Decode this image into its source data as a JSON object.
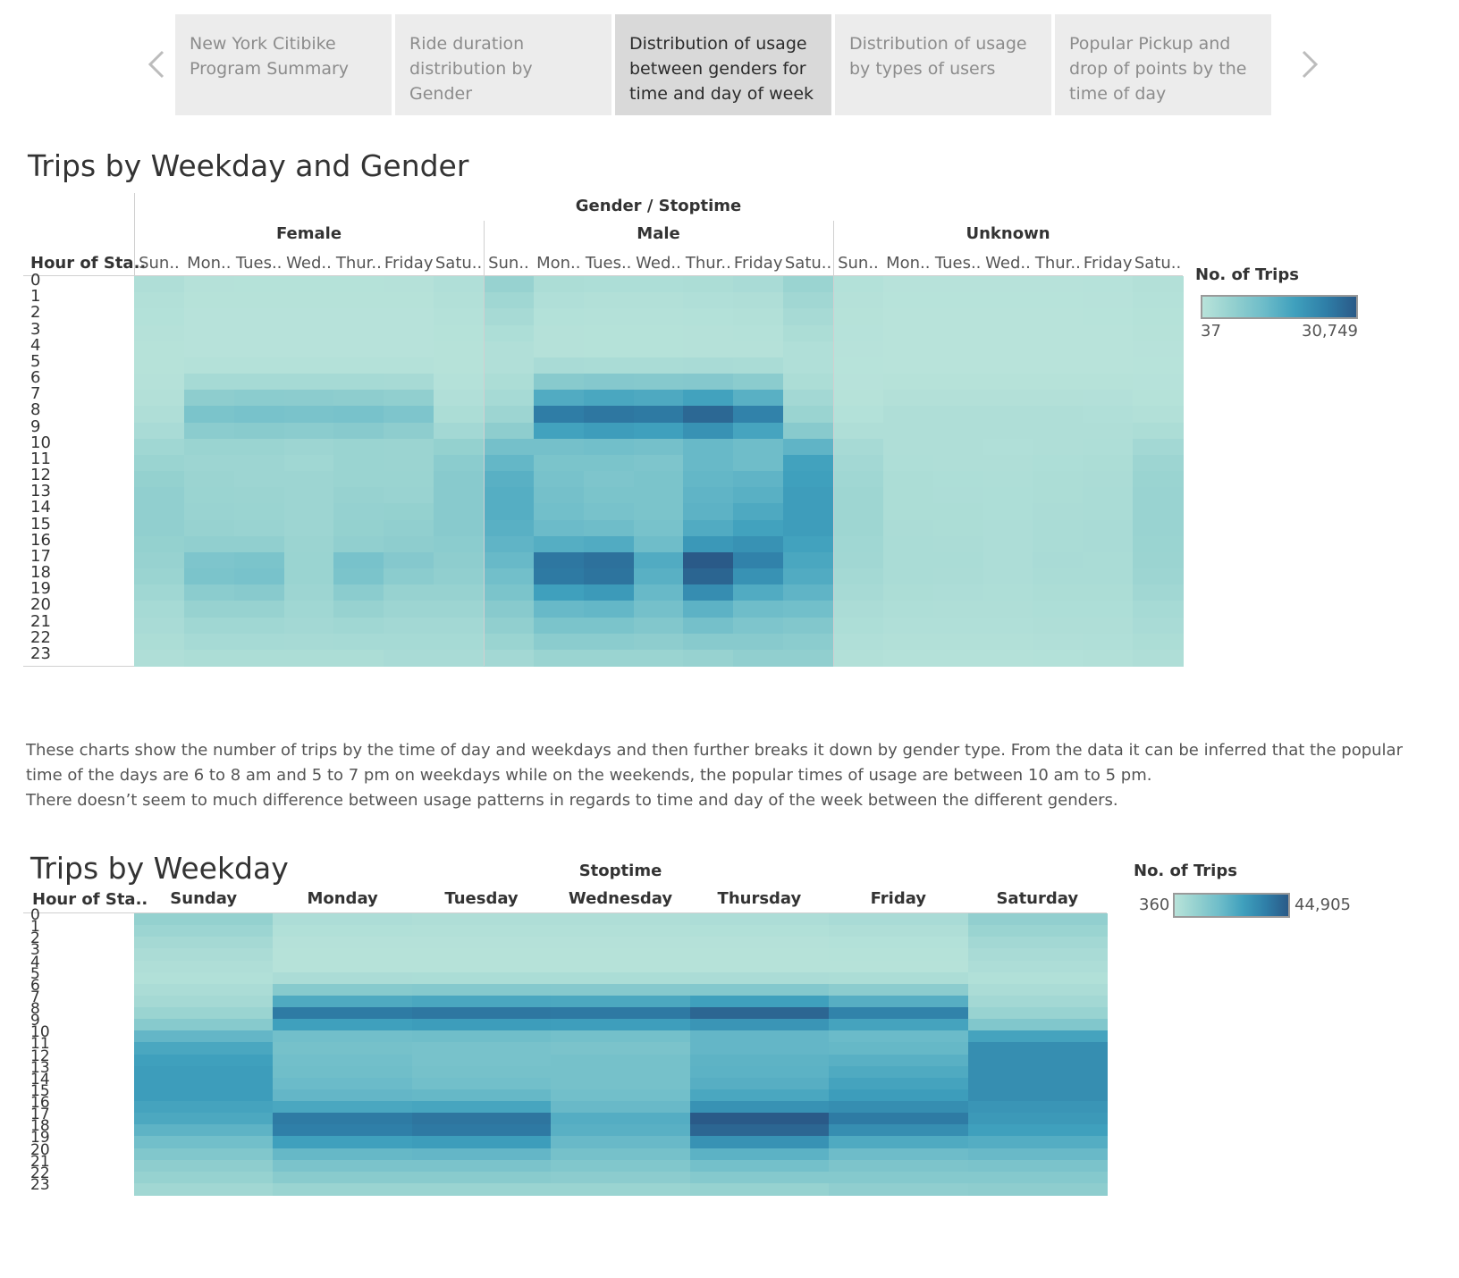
{
  "story_nav": {
    "tabs": [
      {
        "label_lines": [
          "New York Citibike",
          "Program Summary"
        ]
      },
      {
        "label_lines": [
          "Ride duration",
          "distribution by Gender"
        ]
      },
      {
        "label_lines": [
          "Distribution of usage",
          "between genders for",
          "time and day of week"
        ]
      },
      {
        "label_lines": [
          "Distribution of usage",
          "by types of users"
        ]
      },
      {
        "label_lines": [
          "Popular Pickup and",
          "drop of points by the",
          "time of day"
        ]
      }
    ],
    "active_index": 2
  },
  "chart1": {
    "title": "Trips by Weekday and Gender",
    "group_header": "Gender / Stoptime",
    "genders": [
      "Female",
      "Male",
      "Unknown"
    ],
    "day_labels": [
      "Sun..",
      "Mon..",
      "Tues..",
      "Wed..",
      "Thur..",
      "Friday",
      "Satu.."
    ],
    "row_header": "Hour of Sta..",
    "legend_title": "No. of Trips",
    "legend_min": "37",
    "legend_max": "30,749"
  },
  "description": {
    "lines": [
      "These charts show the number of trips by the time of day and weekdays and then further breaks it down by gender type. From the data it can be inferred that the popular",
      "time of the days are 6 to 8 am and 5 to 7 pm on weekdays while on the weekends, the popular times of usage are between 10 am to 5 pm.",
      "There doesn’t seem to much difference between usage patterns in regards to time and day of the week between the different genders."
    ]
  },
  "chart2": {
    "title": "Trips by Weekday",
    "group_header": "Stoptime",
    "days": [
      "Sunday",
      "Monday",
      "Tuesday",
      "Wednesday",
      "Thursday",
      "Friday",
      "Saturday"
    ],
    "row_header": "Hour of Sta..",
    "legend_title": "No. of Trips",
    "legend_min": "360",
    "legend_max": "44,905"
  },
  "colors": {
    "scale": [
      "#b8e3da",
      "#93d0cf",
      "#6dbcc9",
      "#3fa0bd",
      "#2f7fa8",
      "#2a5a88"
    ]
  },
  "chart_data": [
    {
      "type": "heatmap",
      "title": "Trips by Weekday and Gender",
      "xlabel": "Gender / Stoptime",
      "ylabel": "Hour of Sta..",
      "columns": [
        "Female",
        "Male",
        "Unknown"
      ],
      "x": [
        "Sun..",
        "Mon..",
        "Tues..",
        "Wed..",
        "Thur..",
        "Friday",
        "Satu.."
      ],
      "y": [
        "0",
        "1",
        "2",
        "3",
        "4",
        "5",
        "6",
        "7",
        "8",
        "9",
        "10",
        "11",
        "12",
        "13",
        "14",
        "15",
        "16",
        "17",
        "18",
        "19",
        "20",
        "21",
        "22",
        "23"
      ],
      "color_range": [
        37,
        30749
      ],
      "series": [
        {
          "name": "Female",
          "values": [
            [
              1500,
              600,
              500,
              500,
              500,
              600,
              1300
            ],
            [
              1100,
              400,
              350,
              350,
              350,
              400,
              1000
            ],
            [
              800,
              250,
              250,
              250,
              250,
              250,
              700
            ],
            [
              600,
              200,
              200,
              200,
              200,
              200,
              500
            ],
            [
              450,
              200,
              200,
              200,
              200,
              200,
              400
            ],
            [
              400,
              700,
              700,
              700,
              700,
              650,
              400
            ],
            [
              600,
              3000,
              3100,
              3000,
              3000,
              2800,
              700
            ],
            [
              900,
              7000,
              7500,
              7300,
              7000,
              6500,
              1200
            ],
            [
              1500,
              10000,
              10500,
              10200,
              10500,
              9500,
              2000
            ],
            [
              2500,
              7500,
              7800,
              7500,
              8000,
              7000,
              3500
            ],
            [
              4000,
              5000,
              5000,
              4500,
              5000,
              4800,
              6000
            ],
            [
              5000,
              4500,
              4500,
              4000,
              5000,
              4800,
              7500
            ],
            [
              6000,
              4800,
              4500,
              4500,
              5000,
              5000,
              8000
            ],
            [
              6500,
              5000,
              4800,
              4500,
              5500,
              5200,
              8000
            ],
            [
              6500,
              5200,
              5000,
              4500,
              5800,
              6000,
              8000
            ],
            [
              6500,
              5500,
              5200,
              4500,
              6000,
              6500,
              8000
            ],
            [
              6000,
              6500,
              6500,
              4800,
              6500,
              7000,
              7500
            ],
            [
              5500,
              9500,
              10000,
              5000,
              10500,
              8500,
              7000
            ],
            [
              5000,
              10000,
              10500,
              5000,
              10000,
              7500,
              6500
            ],
            [
              4000,
              7500,
              8000,
              4500,
              7500,
              5500,
              5500
            ],
            [
              3000,
              5500,
              5500,
              4000,
              5500,
              4500,
              4500
            ],
            [
              2500,
              4000,
              4000,
              3500,
              4000,
              3500,
              3500
            ],
            [
              2000,
              3000,
              3000,
              2800,
              3000,
              3000,
              3000
            ],
            [
              1500,
              2000,
              2000,
              2000,
              2000,
              2500,
              2500
            ]
          ]
        },
        {
          "name": "Male",
          "values": [
            [
              5500,
              2000,
              1800,
              1800,
              2000,
              2500,
              5000
            ],
            [
              4000,
              1300,
              1100,
              1100,
              1300,
              1600,
              3800
            ],
            [
              2800,
              800,
              700,
              700,
              800,
              1000,
              2800
            ],
            [
              1800,
              600,
              500,
              500,
              600,
              700,
              2000
            ],
            [
              1200,
              600,
              500,
              500,
              600,
              600,
              1400
            ],
            [
              1200,
              2500,
              2400,
              2400,
              2500,
              2300,
              1300
            ],
            [
              2000,
              8000,
              8500,
              8300,
              8500,
              7500,
              2000
            ],
            [
              3000,
              16000,
              17000,
              16500,
              18000,
              15000,
              3500
            ],
            [
              4500,
              25000,
              26000,
              25500,
              28500,
              24000,
              5000
            ],
            [
              7000,
              18000,
              19000,
              18500,
              21000,
              17500,
              8000
            ],
            [
              11000,
              11000,
              11500,
              11000,
              13000,
              12000,
              14000
            ],
            [
              13500,
              10000,
              10000,
              9500,
              13000,
              12000,
              18000
            ],
            [
              15000,
              10500,
              9500,
              10000,
              13500,
              14000,
              18500
            ],
            [
              15500,
              11000,
              10000,
              10000,
              14000,
              15000,
              19000
            ],
            [
              15500,
              11500,
              10500,
              10000,
              14500,
              16500,
              19000
            ],
            [
              15000,
              12500,
              12000,
              10500,
              16000,
              18000,
              19000
            ],
            [
              14000,
              15500,
              16000,
              12000,
              20000,
              21000,
              18000
            ],
            [
              13000,
              26000,
              27000,
              16000,
              30749,
              24000,
              17000
            ],
            [
              11500,
              25500,
              26500,
              15000,
              29000,
              21000,
              16000
            ],
            [
              10000,
              18500,
              19500,
              13000,
              22000,
              16000,
              14000
            ],
            [
              8000,
              13000,
              13500,
              11000,
              14500,
              12000,
              11500
            ],
            [
              6500,
              10000,
              10000,
              9000,
              11000,
              9500,
              9000
            ],
            [
              5000,
              7500,
              7500,
              7000,
              8000,
              8000,
              7500
            ],
            [
              3500,
              5000,
              5000,
              5000,
              5500,
              6500,
              6500
            ]
          ]
        },
        {
          "name": "Unknown",
          "values": [
            [
              800,
              200,
              200,
              200,
              200,
              300,
              900
            ],
            [
              600,
              150,
              150,
              150,
              150,
              200,
              700
            ],
            [
              450,
              100,
              100,
              100,
              100,
              150,
              500
            ],
            [
              300,
              80,
              80,
              80,
              80,
              100,
              350
            ],
            [
              200,
              60,
              60,
              60,
              60,
              80,
              250
            ],
            [
              150,
              100,
              100,
              100,
              100,
              100,
              150
            ],
            [
              250,
              400,
              400,
              400,
              400,
              400,
              300
            ],
            [
              450,
              900,
              900,
              900,
              900,
              850,
              500
            ],
            [
              800,
              1500,
              1500,
              1500,
              1500,
              1400,
              1000
            ],
            [
              1500,
              1500,
              1500,
              1500,
              1500,
              1500,
              2000
            ],
            [
              2800,
              1500,
              1500,
              1400,
              1600,
              1700,
              3500
            ],
            [
              3500,
              1700,
              1600,
              1500,
              1800,
              2000,
              4500
            ],
            [
              4000,
              2000,
              1800,
              1700,
              2000,
              2200,
              5000
            ],
            [
              4300,
              2000,
              1900,
              1800,
              2100,
              2300,
              5200
            ],
            [
              4300,
              2100,
              2000,
              1800,
              2200,
              2400,
              5200
            ],
            [
              4300,
              2200,
              2100,
              1900,
              2300,
              2500,
              5200
            ],
            [
              4000,
              2300,
              2200,
              1900,
              2400,
              2500,
              5000
            ],
            [
              3800,
              2400,
              2300,
              1900,
              2500,
              2400,
              4800
            ],
            [
              3300,
              2300,
              2200,
              1900,
              2400,
              2300,
              4500
            ],
            [
              2800,
              2000,
              1900,
              1700,
              2100,
              2100,
              3800
            ],
            [
              2200,
              1700,
              1600,
              1500,
              1800,
              1800,
              3000
            ],
            [
              1800,
              1400,
              1300,
              1300,
              1500,
              1600,
              2500
            ],
            [
              1400,
              1100,
              1000,
              1000,
              1200,
              1400,
              2000
            ],
            [
              1000,
              700,
              700,
              700,
              800,
              1100,
              1600
            ]
          ]
        }
      ]
    },
    {
      "type": "heatmap",
      "title": "Trips by Weekday",
      "xlabel": "Stoptime",
      "ylabel": "Hour of Sta..",
      "x": [
        "Sunday",
        "Monday",
        "Tuesday",
        "Wednesday",
        "Thursday",
        "Friday",
        "Saturday"
      ],
      "y": [
        "0",
        "1",
        "2",
        "3",
        "4",
        "5",
        "6",
        "7",
        "8",
        "9",
        "10",
        "11",
        "12",
        "13",
        "14",
        "15",
        "16",
        "17",
        "18",
        "19",
        "20",
        "21",
        "22",
        "23"
      ],
      "color_range": [
        360,
        44905
      ],
      "values": [
        [
          9000,
          3000,
          2500,
          2500,
          3000,
          4000,
          9500
        ],
        [
          7000,
          2000,
          1800,
          1800,
          2000,
          2500,
          7500
        ],
        [
          5000,
          1200,
          1100,
          1100,
          1200,
          1500,
          5500
        ],
        [
          3500,
          900,
          800,
          800,
          900,
          1000,
          4000
        ],
        [
          2500,
          900,
          800,
          800,
          900,
          900,
          3000
        ],
        [
          2000,
          3500,
          3400,
          3400,
          3500,
          3200,
          2000
        ],
        [
          3500,
          12000,
          12500,
          12300,
          12800,
          11000,
          3500
        ],
        [
          5000,
          24000,
          25000,
          24500,
          27000,
          22500,
          5500
        ],
        [
          7500,
          37000,
          38000,
          37500,
          42000,
          35000,
          8000
        ],
        [
          12000,
          27000,
          28000,
          27500,
          30000,
          26000,
          13500
        ],
        [
          20000,
          17000,
          17500,
          16500,
          20000,
          18500,
          26000
        ],
        [
          25000,
          16000,
          15500,
          15000,
          20000,
          19500,
          32000
        ],
        [
          27000,
          17000,
          15500,
          16000,
          21000,
          22000,
          32000
        ],
        [
          28000,
          17500,
          16000,
          16000,
          21500,
          24000,
          32000
        ],
        [
          28000,
          18500,
          17000,
          16000,
          22500,
          26000,
          32000
        ],
        [
          28000,
          20000,
          19500,
          17000,
          25000,
          28000,
          32000
        ],
        [
          26000,
          25000,
          25500,
          19000,
          31000,
          32000,
          30000
        ],
        [
          24500,
          37000,
          38500,
          23000,
          44905,
          37000,
          29000
        ],
        [
          21000,
          36000,
          37500,
          22000,
          42000,
          32000,
          27000
        ],
        [
          17000,
          27000,
          28000,
          19000,
          31000,
          24000,
          23000
        ],
        [
          13500,
          19500,
          20000,
          16000,
          21500,
          18000,
          19000
        ],
        [
          10500,
          15000,
          15000,
          13500,
          16500,
          14500,
          15000
        ],
        [
          8500,
          11500,
          11500,
          11000,
          12500,
          12500,
          12500
        ],
        [
          6000,
          7500,
          7500,
          7500,
          8500,
          10000,
          10500
        ]
      ]
    }
  ]
}
